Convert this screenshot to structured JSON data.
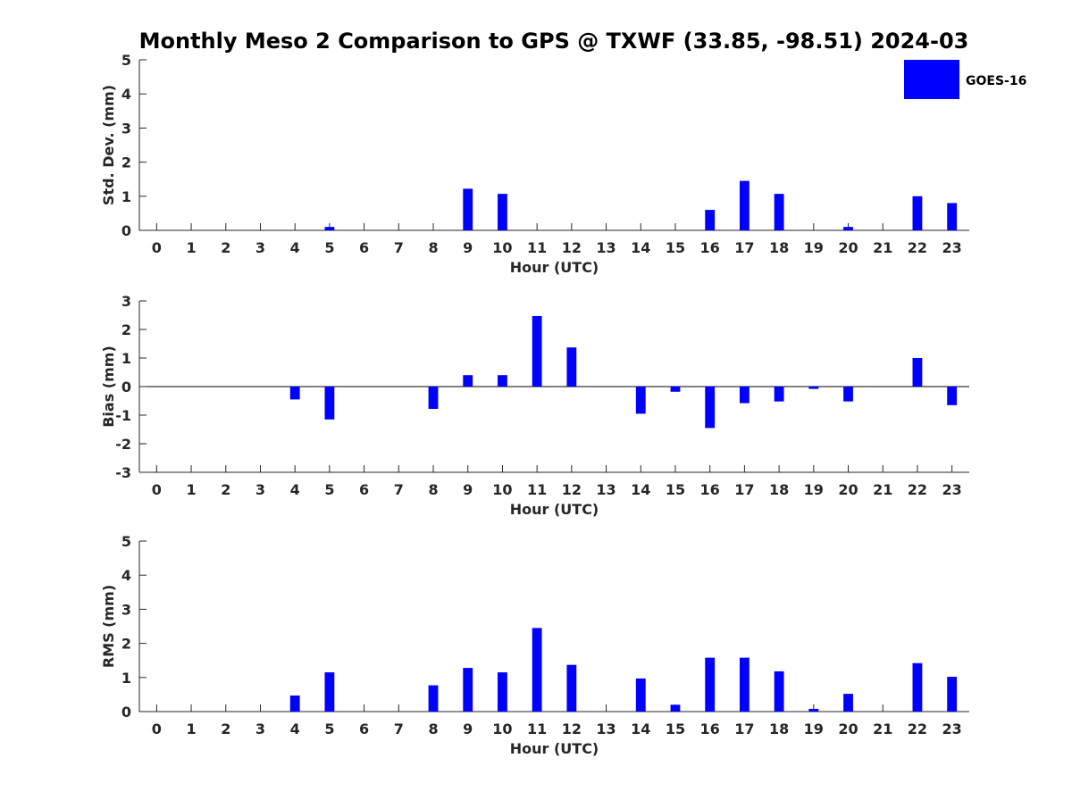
{
  "title": "Monthly Meso 2 Comparison to GPS @ TXWF (33.85, -98.51) 2024-03",
  "legend": {
    "label": "GOES-16",
    "color": "#0000ff",
    "placement": "top-right"
  },
  "chart_data": [
    {
      "type": "bar",
      "title": "Monthly Meso 2 Comparison to GPS @ TXWF (33.85, -98.51) 2024-03",
      "xlabel": "Hour (UTC)",
      "ylabel": "Std. Dev. (mm)",
      "xlim": [
        -0.5,
        23.5
      ],
      "ylim": [
        0,
        5
      ],
      "yticks": [
        0,
        1,
        2,
        3,
        4,
        5
      ],
      "categories": [
        0,
        1,
        2,
        3,
        4,
        5,
        6,
        7,
        8,
        9,
        10,
        11,
        12,
        13,
        14,
        15,
        16,
        17,
        18,
        19,
        20,
        21,
        22,
        23
      ],
      "series": [
        {
          "name": "GOES-16",
          "color": "#0000ff",
          "values": [
            null,
            null,
            null,
            null,
            null,
            0.1,
            null,
            null,
            null,
            1.22,
            1.07,
            null,
            null,
            null,
            null,
            null,
            0.6,
            1.45,
            1.07,
            null,
            0.1,
            null,
            1.0,
            0.8
          ]
        }
      ],
      "grid": false,
      "legend": "top-right"
    },
    {
      "type": "bar",
      "xlabel": "Hour (UTC)",
      "ylabel": "Bias (mm)",
      "xlim": [
        -0.5,
        23.5
      ],
      "ylim": [
        -3,
        3
      ],
      "yticks": [
        -3,
        -2,
        -1,
        0,
        1,
        2,
        3
      ],
      "categories": [
        0,
        1,
        2,
        3,
        4,
        5,
        6,
        7,
        8,
        9,
        10,
        11,
        12,
        13,
        14,
        15,
        16,
        17,
        18,
        19,
        20,
        21,
        22,
        23
      ],
      "series": [
        {
          "name": "GOES-16",
          "color": "#0000ff",
          "values": [
            null,
            null,
            null,
            null,
            -0.45,
            -1.15,
            null,
            null,
            -0.78,
            0.4,
            0.4,
            2.47,
            1.37,
            null,
            -0.95,
            -0.18,
            -1.45,
            -0.58,
            -0.52,
            -0.08,
            -0.52,
            null,
            1.0,
            -0.65
          ]
        }
      ],
      "zero_line": true,
      "grid": false
    },
    {
      "type": "bar",
      "xlabel": "Hour (UTC)",
      "ylabel": "RMS (mm)",
      "xlim": [
        -0.5,
        23.5
      ],
      "ylim": [
        0,
        5
      ],
      "yticks": [
        0,
        1,
        2,
        3,
        4,
        5
      ],
      "categories": [
        0,
        1,
        2,
        3,
        4,
        5,
        6,
        7,
        8,
        9,
        10,
        11,
        12,
        13,
        14,
        15,
        16,
        17,
        18,
        19,
        20,
        21,
        22,
        23
      ],
      "series": [
        {
          "name": "GOES-16",
          "color": "#0000ff",
          "values": [
            null,
            null,
            null,
            null,
            0.47,
            1.15,
            null,
            null,
            0.77,
            1.28,
            1.15,
            2.45,
            1.37,
            null,
            0.97,
            0.2,
            1.58,
            1.58,
            1.18,
            0.08,
            0.52,
            null,
            1.42,
            1.02
          ]
        }
      ],
      "grid": false
    }
  ]
}
